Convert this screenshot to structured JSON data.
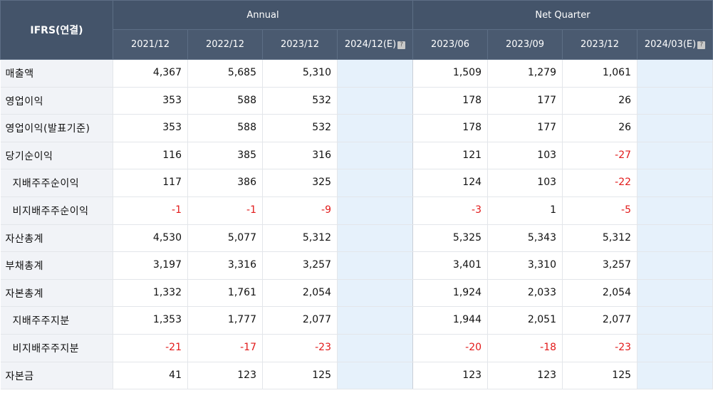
{
  "header": {
    "corner": "IFRS(연결)",
    "groups": [
      {
        "label": "Annual"
      },
      {
        "label": "Net Quarter"
      }
    ],
    "periods": [
      "2021/12",
      "2022/12",
      "2023/12",
      "2024/12(E)",
      "2023/06",
      "2023/09",
      "2023/12",
      "2024/03(E)"
    ],
    "estimate_icon": "?"
  },
  "rows": [
    {
      "label": "매출액",
      "values": [
        "4,367",
        "5,685",
        "5,310",
        "",
        "1,509",
        "1,279",
        "1,061",
        ""
      ]
    },
    {
      "label": "영업이익",
      "values": [
        "353",
        "588",
        "532",
        "",
        "178",
        "177",
        "26",
        ""
      ]
    },
    {
      "label": "영업이익(발표기준)",
      "values": [
        "353",
        "588",
        "532",
        "",
        "178",
        "177",
        "26",
        ""
      ]
    },
    {
      "label": "당기순이익",
      "values": [
        "116",
        "385",
        "316",
        "",
        "121",
        "103",
        "-27",
        ""
      ]
    },
    {
      "label": "지배주주순이익",
      "values": [
        "117",
        "386",
        "325",
        "",
        "124",
        "103",
        "-22",
        ""
      ]
    },
    {
      "label": "비지배주주순이익",
      "values": [
        "-1",
        "-1",
        "-9",
        "",
        "-3",
        "1",
        "-5",
        ""
      ]
    },
    {
      "label": "자산총계",
      "values": [
        "4,530",
        "5,077",
        "5,312",
        "",
        "5,325",
        "5,343",
        "5,312",
        ""
      ]
    },
    {
      "label": "부채총계",
      "values": [
        "3,197",
        "3,316",
        "3,257",
        "",
        "3,401",
        "3,310",
        "3,257",
        ""
      ]
    },
    {
      "label": "자본총계",
      "values": [
        "1,332",
        "1,761",
        "2,054",
        "",
        "1,924",
        "2,033",
        "2,054",
        ""
      ]
    },
    {
      "label": "지배주주지분",
      "values": [
        "1,353",
        "1,777",
        "2,077",
        "",
        "1,944",
        "2,051",
        "2,077",
        ""
      ]
    },
    {
      "label": "비지배주주지분",
      "values": [
        "-21",
        "-17",
        "-23",
        "",
        "-20",
        "-18",
        "-23",
        ""
      ]
    },
    {
      "label": "자본금",
      "values": [
        "41",
        "123",
        "125",
        "",
        "123",
        "123",
        "125",
        ""
      ]
    }
  ],
  "colors": {
    "header_bg": "#44546a",
    "label_bg": "#f1f3f7",
    "estimate_bg": "#e6f1fb",
    "negative": "#e21a1a"
  }
}
